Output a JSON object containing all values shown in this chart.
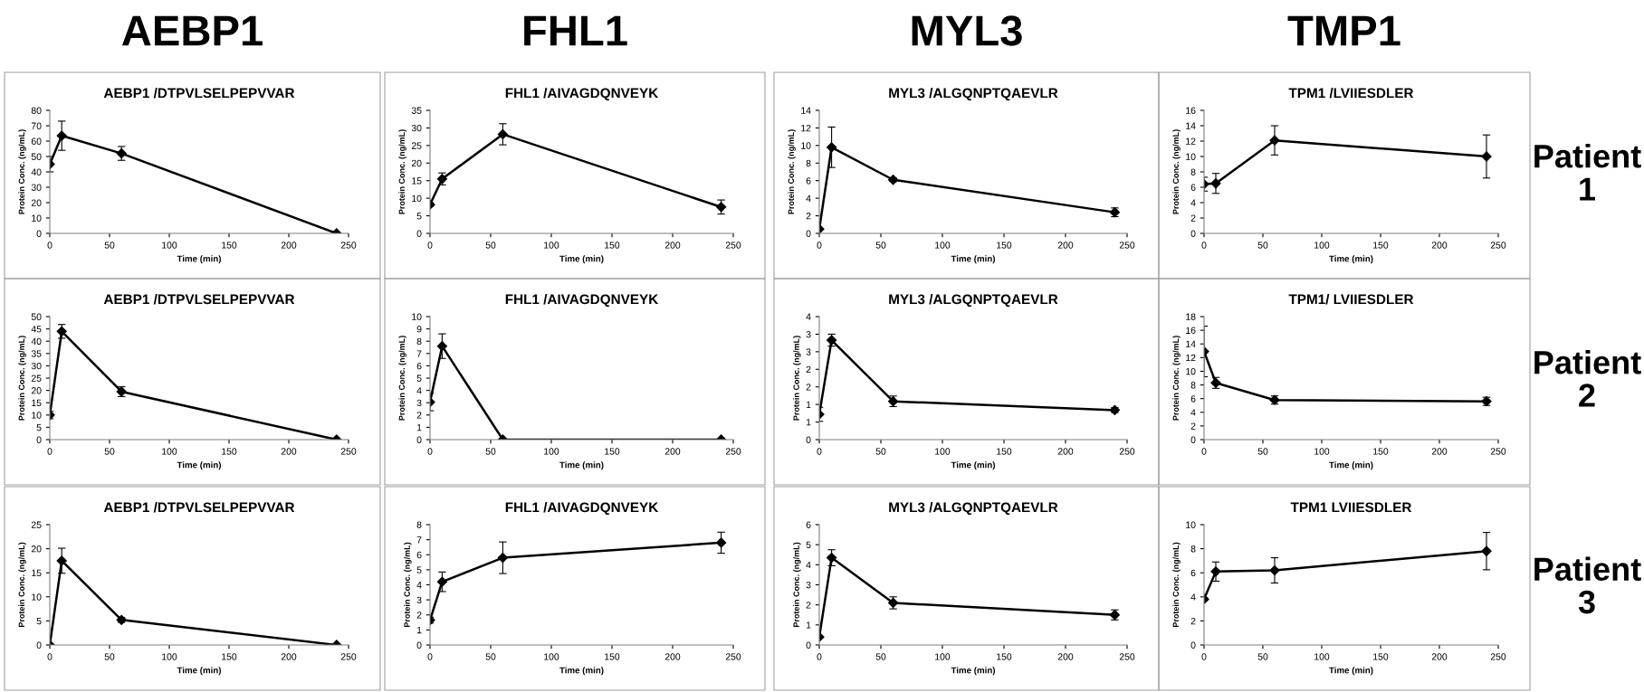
{
  "chart_data": [
    {
      "type": "line",
      "title": "AEBP1 /DTPVLSELPEPVVAR",
      "xlabel": "Time (min)",
      "ylabel": "Protein Conc. (ng/mL)",
      "annotations": [
        "AEBP1"
      ],
      "x": [
        0,
        10,
        60,
        240
      ],
      "marker": "diamond",
      "xlim": [
        0,
        250
      ],
      "xticks": [
        0,
        50,
        100,
        150,
        200,
        250
      ],
      "ylim": [
        0,
        80
      ],
      "yticks": [
        0,
        10,
        20,
        30,
        40,
        50,
        60,
        70,
        80
      ],
      "series": [
        {
          "color": "#000000",
          "values": [
            45,
            63.5,
            52,
            0
          ],
          "errors": [
            5,
            9.5,
            4.5,
            null
          ]
        }
      ]
    },
    {
      "type": "line",
      "title": "FHL1 /AIVAGDQNVEYK",
      "xlabel": "Time (min)",
      "ylabel": "Protein Conc. (ng/mL)",
      "annotations": [
        "FHL1"
      ],
      "x": [
        0,
        10,
        60,
        240
      ],
      "marker": "diamond",
      "xlim": [
        0,
        250
      ],
      "xticks": [
        0,
        50,
        100,
        150,
        200,
        250
      ],
      "ylim": [
        0,
        35
      ],
      "yticks": [
        0,
        5,
        10,
        15,
        20,
        25,
        30,
        35
      ],
      "series": [
        {
          "color": "#000000",
          "values": [
            8.2,
            15.5,
            28.2,
            7.5
          ],
          "errors": [
            0.5,
            1.7,
            3,
            2
          ]
        }
      ]
    },
    {
      "type": "line",
      "title": "MYL3 /ALGQNPTQAEVLR",
      "xlabel": "Time (min)",
      "ylabel": "Protein Conc. (ng/mL)",
      "annotations": [
        "MYL3"
      ],
      "x": [
        0,
        10,
        60,
        240
      ],
      "marker": "diamond",
      "xlim": [
        0,
        250
      ],
      "xticks": [
        0,
        50,
        100,
        150,
        200,
        250
      ],
      "ylim": [
        0,
        14
      ],
      "yticks": [
        0,
        2,
        4,
        6,
        8,
        10,
        12,
        14
      ],
      "series": [
        {
          "color": "#000000",
          "values": [
            0.5,
            9.8,
            6.1,
            2.4
          ],
          "errors": [
            null,
            2.3,
            0.2,
            0.5
          ]
        }
      ]
    },
    {
      "type": "line",
      "title": "TPM1 /LVIIESDLER",
      "xlabel": "Time (min)",
      "ylabel": "Protein Conc. (ng/mL)",
      "annotations": [
        "TMP1",
        "Patient\n1"
      ],
      "x": [
        0,
        10,
        60,
        240
      ],
      "marker": "diamond",
      "xlim": [
        0,
        250
      ],
      "xticks": [
        0,
        50,
        100,
        150,
        200,
        250
      ],
      "ylim": [
        0,
        16
      ],
      "yticks": [
        0,
        2,
        4,
        6,
        8,
        10,
        12,
        14,
        16
      ],
      "series": [
        {
          "color": "#000000",
          "values": [
            6.4,
            6.5,
            12.1,
            10.0
          ],
          "errors": [
            0.9,
            1.3,
            1.9,
            2.8
          ]
        }
      ]
    },
    {
      "type": "line",
      "title": "AEBP1 /DTPVLSELPEPVVAR",
      "xlabel": "Time (min)",
      "ylabel": "Protein Conc. (ng/mL)",
      "x": [
        0,
        10,
        60,
        240
      ],
      "marker": "diamond",
      "xlim": [
        0,
        250
      ],
      "xticks": [
        0,
        50,
        100,
        150,
        200,
        250
      ],
      "ylim": [
        0,
        50
      ],
      "yticks": [
        0,
        5,
        10,
        15,
        20,
        25,
        30,
        35,
        40,
        45,
        50
      ],
      "series": [
        {
          "color": "#000000",
          "values": [
            10,
            44,
            19.5,
            0
          ],
          "errors": [
            1.5,
            2.8,
            2,
            null
          ]
        }
      ]
    },
    {
      "type": "line",
      "title": "FHL1 /AIVAGDQNVEYK",
      "xlabel": "Time (min)",
      "ylabel": "Protein Conc. (ng/mL)",
      "x": [
        0,
        10,
        60,
        240
      ],
      "marker": "diamond",
      "xlim": [
        0,
        250
      ],
      "xticks": [
        0,
        50,
        100,
        150,
        200,
        250
      ],
      "ylim": [
        0,
        10
      ],
      "yticks": [
        0,
        1,
        2,
        3,
        4,
        5,
        6,
        7,
        8,
        9,
        10
      ],
      "series": [
        {
          "color": "#000000",
          "values": [
            3.05,
            7.6,
            0,
            0
          ],
          "errors": [
            0.7,
            1,
            null,
            null
          ]
        }
      ]
    },
    {
      "type": "line",
      "title": "MYL3 /ALGQNPTQAEVLR",
      "xlabel": "Time (min)",
      "ylabel": "Protein Conc. (ng/mL)",
      "x": [
        0,
        10,
        60,
        240
      ],
      "marker": "diamond",
      "xlim": [
        0,
        250
      ],
      "xticks": [
        0,
        50,
        100,
        150,
        200,
        250
      ],
      "ylim": [
        0,
        3.5
      ],
      "yticks": [
        0,
        {
          "value": 0.5,
          "label": "1"
        },
        1,
        {
          "value": 1.5,
          "label": "2"
        },
        2,
        {
          "value": 2.5,
          "label": "3"
        },
        3,
        {
          "value": 3.5,
          "label": "4"
        }
      ],
      "series": [
        {
          "color": "#000000",
          "values": [
            0.72,
            2.83,
            1.09,
            0.84
          ],
          "errors": [
            0.2,
            0.17,
            0.15,
            0.07
          ]
        }
      ]
    },
    {
      "type": "line",
      "title": "TPM1/ LVIIESDLER",
      "xlabel": "Time (min)",
      "ylabel": "Protein Conc. (ng/mL)",
      "annotations": [
        "Patient\n2"
      ],
      "x": [
        0,
        10,
        60,
        240
      ],
      "marker": "diamond",
      "xlim": [
        0,
        250
      ],
      "xticks": [
        0,
        50,
        100,
        150,
        200,
        250
      ],
      "ylim": [
        0,
        18
      ],
      "yticks": [
        0,
        2,
        4,
        6,
        8,
        10,
        12,
        14,
        16,
        18
      ],
      "series": [
        {
          "color": "#000000",
          "values": [
            12.9,
            8.3,
            5.8,
            5.6
          ],
          "errors": [
            3.7,
            0.8,
            0.6,
            0.6
          ]
        }
      ]
    },
    {
      "type": "line",
      "title": "AEBP1 /DTPVLSELPEPVVAR",
      "xlabel": "Time (min)",
      "ylabel": "Protein Conc. (ng/mL)",
      "x": [
        0,
        10,
        60,
        240
      ],
      "marker": "diamond",
      "xlim": [
        0,
        250
      ],
      "xticks": [
        0,
        50,
        100,
        150,
        200,
        250
      ],
      "ylim": [
        0,
        25
      ],
      "yticks": [
        0,
        5,
        10,
        15,
        20,
        25
      ],
      "series": [
        {
          "color": "#000000",
          "values": [
            0,
            17.5,
            5.2,
            0
          ],
          "errors": [
            null,
            2.6,
            0.5,
            null
          ]
        }
      ]
    },
    {
      "type": "line",
      "title": "FHL1 /AIVAGDQNVEYK",
      "xlabel": "Time (min)",
      "ylabel": "Protein Conc. (ng/mL)",
      "x": [
        0,
        10,
        60,
        240
      ],
      "marker": "diamond",
      "xlim": [
        0,
        250
      ],
      "xticks": [
        0,
        50,
        100,
        150,
        200,
        250
      ],
      "ylim": [
        0,
        8
      ],
      "yticks": [
        0,
        1,
        2,
        3,
        4,
        5,
        6,
        7,
        8
      ],
      "series": [
        {
          "color": "#000000",
          "values": [
            1.65,
            4.2,
            5.8,
            6.8
          ],
          "errors": [
            0.2,
            0.65,
            1.05,
            0.7
          ]
        }
      ]
    },
    {
      "type": "line",
      "title": "MYL3 /ALGQNPTQAEVLR",
      "xlabel": "Time (min)",
      "ylabel": "Protein Conc. (ng/mL)",
      "x": [
        0,
        10,
        60,
        240
      ],
      "marker": "diamond",
      "xlim": [
        0,
        250
      ],
      "xticks": [
        0,
        50,
        100,
        150,
        200,
        250
      ],
      "ylim": [
        0,
        6
      ],
      "yticks": [
        0,
        1,
        2,
        3,
        4,
        5,
        6
      ],
      "series": [
        {
          "color": "#000000",
          "values": [
            0.4,
            4.35,
            2.1,
            1.5
          ],
          "errors": [
            null,
            0.4,
            0.3,
            0.25
          ]
        }
      ]
    },
    {
      "type": "line",
      "title": "TPM1 LVIIESDLER",
      "xlabel": "Time (min)",
      "ylabel": "Protein Conc. (ng/mL)",
      "annotations": [
        "Patient\n3"
      ],
      "x": [
        0,
        10,
        60,
        240
      ],
      "marker": "diamond",
      "xlim": [
        0,
        250
      ],
      "xticks": [
        0,
        50,
        100,
        150,
        200,
        250
      ],
      "ylim": [
        0,
        10
      ],
      "yticks": [
        0,
        2,
        4,
        6,
        8,
        10
      ],
      "series": [
        {
          "color": "#000000",
          "values": [
            3.8,
            6.1,
            6.2,
            7.8
          ],
          "errors": [
            0.15,
            0.8,
            1.05,
            1.55
          ]
        }
      ]
    }
  ]
}
